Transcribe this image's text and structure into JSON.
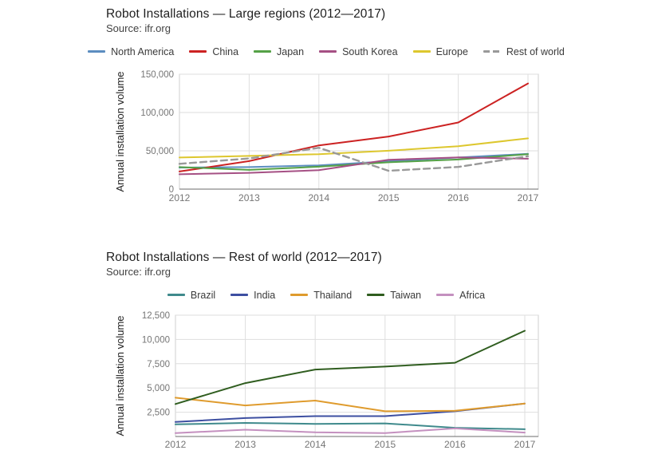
{
  "chart_data": [
    {
      "type": "line",
      "title": "Robot Installations — Large regions (2012—2017)",
      "subtitle": "Source: ifr.org",
      "xlabel": "",
      "ylabel": "Annual installation volume",
      "x": [
        "2012",
        "2013",
        "2014",
        "2015",
        "2016",
        "2017"
      ],
      "series": [
        {
          "name": "North America",
          "color": "#5c8dc0",
          "dashed": false,
          "values": [
            28100,
            28700,
            31000,
            36400,
            41300,
            46000
          ]
        },
        {
          "name": "China",
          "color": "#cc2222",
          "dashed": false,
          "values": [
            23000,
            36600,
            57100,
            68600,
            87000,
            137900
          ]
        },
        {
          "name": "Japan",
          "color": "#55a146",
          "dashed": false,
          "values": [
            28700,
            25100,
            29300,
            35000,
            38600,
            45600
          ]
        },
        {
          "name": "South Korea",
          "color": "#a55084",
          "dashed": false,
          "values": [
            19400,
            21300,
            24700,
            38300,
            41400,
            39700
          ]
        },
        {
          "name": "Europe",
          "color": "#ddc72e",
          "dashed": false,
          "values": [
            41200,
            43300,
            45600,
            50100,
            56000,
            66300
          ]
        },
        {
          "name": "Rest of world",
          "color": "#999999",
          "dashed": true,
          "values": [
            33000,
            40000,
            54000,
            24000,
            29000,
            43000
          ]
        }
      ],
      "ylim": [
        0,
        150000
      ],
      "yticks": [
        0,
        50000,
        100000,
        150000
      ],
      "ytick_labels": [
        "0",
        "50,000",
        "100,000",
        "150,000"
      ],
      "grid": true,
      "legend_position": "top"
    },
    {
      "type": "line",
      "title": "Robot Installations — Rest of world (2012—2017)",
      "subtitle": "Source: ifr.org",
      "xlabel": "",
      "ylabel": "Annual installation volume",
      "x": [
        "2012",
        "2013",
        "2014",
        "2015",
        "2016",
        "2017"
      ],
      "series": [
        {
          "name": "Brazil",
          "color": "#3f8a8c",
          "dashed": false,
          "values": [
            1250,
            1400,
            1300,
            1350,
            900,
            750
          ]
        },
        {
          "name": "India",
          "color": "#3d4fa1",
          "dashed": false,
          "values": [
            1500,
            1900,
            2100,
            2100,
            2600,
            3400
          ]
        },
        {
          "name": "Thailand",
          "color": "#df9b2d",
          "dashed": false,
          "values": [
            4000,
            3200,
            3700,
            2600,
            2650,
            3400
          ]
        },
        {
          "name": "Taiwan",
          "color": "#2f5d1f",
          "dashed": false,
          "values": [
            3350,
            5500,
            6900,
            7200,
            7600,
            10900
          ]
        },
        {
          "name": "Africa",
          "color": "#c490bf",
          "dashed": false,
          "values": [
            350,
            700,
            430,
            350,
            830,
            400
          ]
        }
      ],
      "ylim": [
        0,
        12500
      ],
      "yticks": [
        2500,
        5000,
        7500,
        10000,
        12500
      ],
      "ytick_labels": [
        "2,500",
        "5,000",
        "7,500",
        "10,000",
        "12,500"
      ],
      "grid": true,
      "legend_position": "top"
    }
  ]
}
